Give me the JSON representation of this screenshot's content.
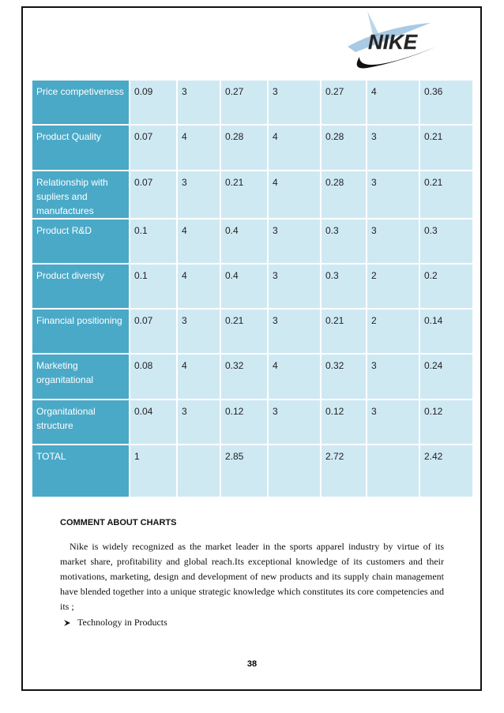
{
  "logo": {
    "text": "NIKE"
  },
  "table": {
    "rows": [
      [
        "Price competiveness",
        "0.09",
        "3",
        "0.27",
        "3",
        "0.27",
        "4",
        "0.36"
      ],
      [
        "Product Quality",
        "0.07",
        "4",
        "0.28",
        "4",
        "0.28",
        "3",
        "0.21"
      ],
      [
        "Relationship with supliers and manufactures",
        "0.07",
        "3",
        "0.21",
        "4",
        "0.28",
        "3",
        "0.21"
      ],
      [
        "Product  R&D",
        "0.1",
        "4",
        "0.4",
        "3",
        "0.3",
        "3",
        "0.3"
      ],
      [
        "Product diversty",
        "0.1",
        "4",
        "0.4",
        "3",
        "0.3",
        "2",
        "0.2"
      ],
      [
        "Financial positioning",
        "0.07",
        "3",
        "0.21",
        "3",
        "0.21",
        "2",
        "0.14"
      ],
      [
        "Marketing organitational",
        "0.08",
        "4",
        "0.32",
        "4",
        "0.32",
        "3",
        "0.24"
      ],
      [
        "Organitational structure",
        "0.04",
        "3",
        "0.12",
        "3",
        "0.12",
        "3",
        "0.12"
      ],
      [
        "TOTAL",
        "1",
        null,
        "2.85",
        null,
        "2.72",
        null,
        "2.42"
      ]
    ]
  },
  "comment": {
    "heading": "COMMENT ABOUT CHARTS",
    "paragraph": "Nike is widely recognized as the market leader in the sports apparel industry by virtue of its market share, profitability and global reach.Its exceptional knowledge of its customers and their motivations, marketing, design and development of new products and its supply chain management have blended together into a unique strategic knowledge which constitutes its core competencies and its ;",
    "bullets": [
      "Technology in Products"
    ]
  },
  "page_number": "38"
}
